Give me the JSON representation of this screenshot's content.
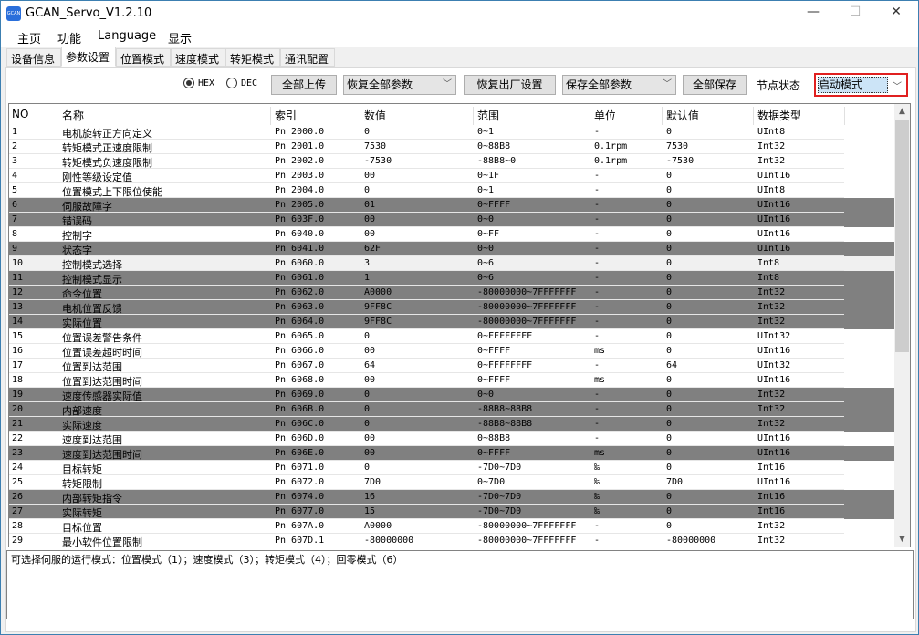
{
  "window": {
    "title": "GCAN_Servo_V1.2.10",
    "app_icon_text": "GCAN",
    "minimize": "—",
    "maximize": "☐",
    "close": "✕"
  },
  "menu": [
    "主页",
    "功能",
    "Language",
    "显示"
  ],
  "tabs": [
    {
      "label": "设备信息"
    },
    {
      "label": "参数设置",
      "active": true
    },
    {
      "label": "位置模式"
    },
    {
      "label": "速度模式"
    },
    {
      "label": "转矩模式"
    },
    {
      "label": "通讯配置"
    }
  ],
  "toolbar": {
    "hex_label": "HEX",
    "dec_label": "DEC",
    "hex_selected": true,
    "upload_all": "全部上传",
    "restore_combo": "恢复全部参数",
    "factory_reset": "恢复出厂设置",
    "save_combo": "保存全部参数",
    "save_all": "全部保存",
    "node_state_label": "节点状态",
    "node_state_value": "启动模式"
  },
  "table": {
    "columns": [
      "NO",
      "名称",
      "索引",
      "数值",
      "范围",
      "单位",
      "默认值",
      "数据类型"
    ],
    "rows": [
      [
        "1",
        "电机旋转正方向定义",
        "Pn 2000.0",
        "0",
        "0~1",
        "-",
        "0",
        "UInt8",
        "normal"
      ],
      [
        "2",
        "转矩模式正速度限制",
        "Pn 2001.0",
        "7530",
        "0~88B8",
        "0.1rpm",
        "7530",
        "Int32",
        "normal"
      ],
      [
        "3",
        "转矩模式负速度限制",
        "Pn 2002.0",
        "-7530",
        "-88B8~0",
        "0.1rpm",
        "-7530",
        "Int32",
        "normal"
      ],
      [
        "4",
        "刚性等级设定值",
        "Pn 2003.0",
        "00",
        "0~1F",
        "-",
        "0",
        "UInt16",
        "normal"
      ],
      [
        "5",
        "位置模式上下限位使能",
        "Pn 2004.0",
        "0",
        "0~1",
        "-",
        "0",
        "UInt8",
        "normal"
      ],
      [
        "6",
        "伺服故障字",
        "Pn 2005.0",
        "01",
        "0~FFFF",
        "-",
        "0",
        "UInt16",
        "dark"
      ],
      [
        "7",
        "错误码",
        "Pn 603F.0",
        "00",
        "0~0",
        "-",
        "0",
        "UInt16",
        "dark"
      ],
      [
        "8",
        "控制字",
        "Pn 6040.0",
        "00",
        "0~FF",
        "-",
        "0",
        "UInt16",
        "normal"
      ],
      [
        "9",
        "状态字",
        "Pn 6041.0",
        "62F",
        "0~0",
        "-",
        "0",
        "UInt16",
        "dark"
      ],
      [
        "10",
        "控制模式选择",
        "Pn 6060.0",
        "3",
        "0~6",
        "-",
        "0",
        "Int8",
        "selected"
      ],
      [
        "11",
        "控制模式显示",
        "Pn 6061.0",
        "1",
        "0~6",
        "-",
        "0",
        "Int8",
        "dark"
      ],
      [
        "12",
        "命令位置",
        "Pn 6062.0",
        "A0000",
        "-80000000~7FFFFFFF",
        "-",
        "0",
        "Int32",
        "dark"
      ],
      [
        "13",
        "电机位置反馈",
        "Pn 6063.0",
        "9FF8C",
        "-80000000~7FFFFFFF",
        "-",
        "0",
        "Int32",
        "dark"
      ],
      [
        "14",
        "实际位置",
        "Pn 6064.0",
        "9FF8C",
        "-80000000~7FFFFFFF",
        "-",
        "0",
        "Int32",
        "dark"
      ],
      [
        "15",
        "位置误差警告条件",
        "Pn 6065.0",
        "0",
        "0~FFFFFFFF",
        "-",
        "0",
        "UInt32",
        "normal"
      ],
      [
        "16",
        "位置误差超时时间",
        "Pn 6066.0",
        "00",
        "0~FFFF",
        "ms",
        "0",
        "UInt16",
        "normal"
      ],
      [
        "17",
        "位置到达范围",
        "Pn 6067.0",
        "64",
        "0~FFFFFFFF",
        "-",
        "64",
        "UInt32",
        "normal"
      ],
      [
        "18",
        "位置到达范围时间",
        "Pn 6068.0",
        "00",
        "0~FFFF",
        "ms",
        "0",
        "UInt16",
        "normal"
      ],
      [
        "19",
        "速度传感器实际值",
        "Pn 6069.0",
        "0",
        "0~0",
        "-",
        "0",
        "Int32",
        "dark"
      ],
      [
        "20",
        "内部速度",
        "Pn 606B.0",
        "0",
        "-88B8~88B8",
        "-",
        "0",
        "Int32",
        "dark"
      ],
      [
        "21",
        "实际速度",
        "Pn 606C.0",
        "0",
        "-88B8~88B8",
        "-",
        "0",
        "Int32",
        "dark"
      ],
      [
        "22",
        "速度到达范围",
        "Pn 606D.0",
        "00",
        "0~88B8",
        "-",
        "0",
        "UInt16",
        "normal"
      ],
      [
        "23",
        "速度到达范围时间",
        "Pn 606E.0",
        "00",
        "0~FFFF",
        "ms",
        "0",
        "UInt16",
        "dark"
      ],
      [
        "24",
        "目标转矩",
        "Pn 6071.0",
        "0",
        "-7D0~7D0",
        "‰",
        "0",
        "Int16",
        "normal"
      ],
      [
        "25",
        "转矩限制",
        "Pn 6072.0",
        "7D0",
        "0~7D0",
        "‰",
        "7D0",
        "UInt16",
        "normal"
      ],
      [
        "26",
        "内部转矩指令",
        "Pn 6074.0",
        "16",
        "-7D0~7D0",
        "‰",
        "0",
        "Int16",
        "dark"
      ],
      [
        "27",
        "实际转矩",
        "Pn 6077.0",
        "15",
        "-7D0~7D0",
        "‰",
        "0",
        "Int16",
        "dark"
      ],
      [
        "28",
        "目标位置",
        "Pn 607A.0",
        "A0000",
        "-80000000~7FFFFFFF",
        "-",
        "0",
        "Int32",
        "normal"
      ],
      [
        "29",
        "最小软件位置限制",
        "Pn 607D.1",
        "-80000000",
        "-80000000~7FFFFFFF",
        "-",
        "-80000000",
        "Int32",
        "normal"
      ]
    ]
  },
  "description": "可选择伺服的运行模式：位置模式（1）；速度模式（3）；转矩模式（4）；回零模式（6）",
  "colors": {
    "dark_row": "#808080",
    "highlight_border": "#e02020",
    "selected_combo": "#cce4f7"
  }
}
